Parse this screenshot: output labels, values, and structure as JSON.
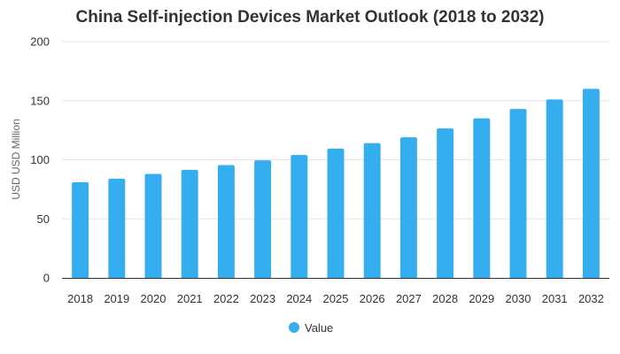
{
  "chart_data": {
    "type": "bar",
    "title": "China Self-injection Devices Market Outlook (2018 to 2032)",
    "xlabel": "",
    "ylabel": "USD USD Million",
    "categories": [
      "2018",
      "2019",
      "2020",
      "2021",
      "2022",
      "2023",
      "2024",
      "2025",
      "2026",
      "2027",
      "2028",
      "2029",
      "2030",
      "2031",
      "2032"
    ],
    "series": [
      {
        "name": "Value",
        "color": "#35aef0",
        "values": [
          81,
          84,
          88,
          91.5,
          95.5,
          99.5,
          104,
          109.5,
          114,
          119,
          126.5,
          135,
          143,
          151,
          160
        ]
      }
    ],
    "ylim": [
      0,
      200
    ],
    "yticks": [
      0,
      50,
      100,
      150,
      200
    ],
    "grid": true,
    "legend": "bottom-center"
  }
}
